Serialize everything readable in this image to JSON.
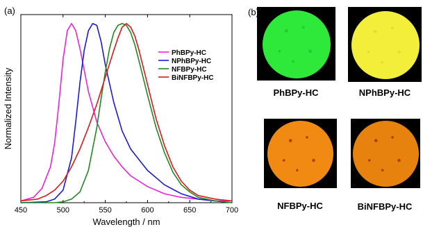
{
  "panel_a_label": "(a)",
  "panel_b_label": "(b)",
  "chart_data": {
    "type": "line",
    "xlabel": "Wavelength / nm",
    "ylabel": "Normalized Intensity",
    "xlim": [
      450,
      700
    ],
    "ylim": [
      0,
      1.05
    ],
    "xticks": [
      450,
      500,
      550,
      600,
      650,
      700
    ],
    "yticks_shown": false,
    "legend_position": "right",
    "series": [
      {
        "name": "PhBPy-HC",
        "color": "#ee22dd",
        "x": [
          450,
          465,
          475,
          485,
          490,
          495,
          500,
          505,
          510,
          515,
          520,
          525,
          530,
          540,
          550,
          560,
          570,
          580,
          590,
          600,
          620,
          640,
          660,
          680,
          700
        ],
        "y": [
          0.01,
          0.03,
          0.08,
          0.2,
          0.33,
          0.55,
          0.8,
          0.96,
          1.0,
          0.96,
          0.86,
          0.74,
          0.62,
          0.45,
          0.34,
          0.26,
          0.2,
          0.15,
          0.12,
          0.09,
          0.05,
          0.03,
          0.02,
          0.01,
          0.01
        ]
      },
      {
        "name": "NPhBPy-HC",
        "color": "#1a1adb",
        "x": [
          450,
          480,
          490,
          500,
          510,
          515,
          520,
          525,
          530,
          535,
          540,
          545,
          550,
          560,
          570,
          580,
          590,
          600,
          620,
          640,
          660,
          680,
          700
        ],
        "y": [
          0.0,
          0.005,
          0.02,
          0.07,
          0.25,
          0.45,
          0.67,
          0.85,
          0.96,
          1.0,
          0.99,
          0.9,
          0.77,
          0.56,
          0.4,
          0.3,
          0.24,
          0.18,
          0.1,
          0.05,
          0.02,
          0.01,
          0.0
        ]
      },
      {
        "name": "NFBPy-HC",
        "color": "#1e8a1e",
        "x": [
          450,
          490,
          500,
          510,
          520,
          530,
          540,
          545,
          550,
          555,
          560,
          565,
          570,
          575,
          580,
          585,
          590,
          600,
          610,
          620,
          630,
          640,
          650,
          660,
          680,
          700
        ],
        "y": [
          0.0,
          0.0,
          0.005,
          0.02,
          0.06,
          0.18,
          0.42,
          0.58,
          0.73,
          0.86,
          0.95,
          0.99,
          1.0,
          0.99,
          0.95,
          0.88,
          0.79,
          0.6,
          0.42,
          0.28,
          0.17,
          0.1,
          0.06,
          0.03,
          0.01,
          0.0
        ]
      },
      {
        "name": "BiNFBPy-HC",
        "color": "#e01818",
        "x": [
          450,
          470,
          480,
          490,
          500,
          510,
          520,
          530,
          540,
          550,
          560,
          565,
          570,
          575,
          580,
          585,
          590,
          600,
          610,
          620,
          630,
          640,
          650,
          660,
          680,
          700
        ],
        "y": [
          0.01,
          0.02,
          0.04,
          0.07,
          0.12,
          0.2,
          0.3,
          0.42,
          0.55,
          0.7,
          0.85,
          0.92,
          0.98,
          1.0,
          0.98,
          0.93,
          0.85,
          0.66,
          0.47,
          0.32,
          0.2,
          0.12,
          0.07,
          0.04,
          0.02,
          0.01
        ]
      }
    ]
  },
  "photos": [
    {
      "caption": "PhBPy-HC",
      "color": "#2ee83a",
      "speckle": "#22cc30"
    },
    {
      "caption": "NPhBPy-HC",
      "color": "#f2ee3a",
      "speckle": "#e4dd2a"
    },
    {
      "caption": "NFBPy-HC",
      "color": "#f08a12",
      "speckle": "#b83c08"
    },
    {
      "caption": "BiNFBPy-HC",
      "color": "#e8820e",
      "speckle": "#b23a08"
    }
  ]
}
